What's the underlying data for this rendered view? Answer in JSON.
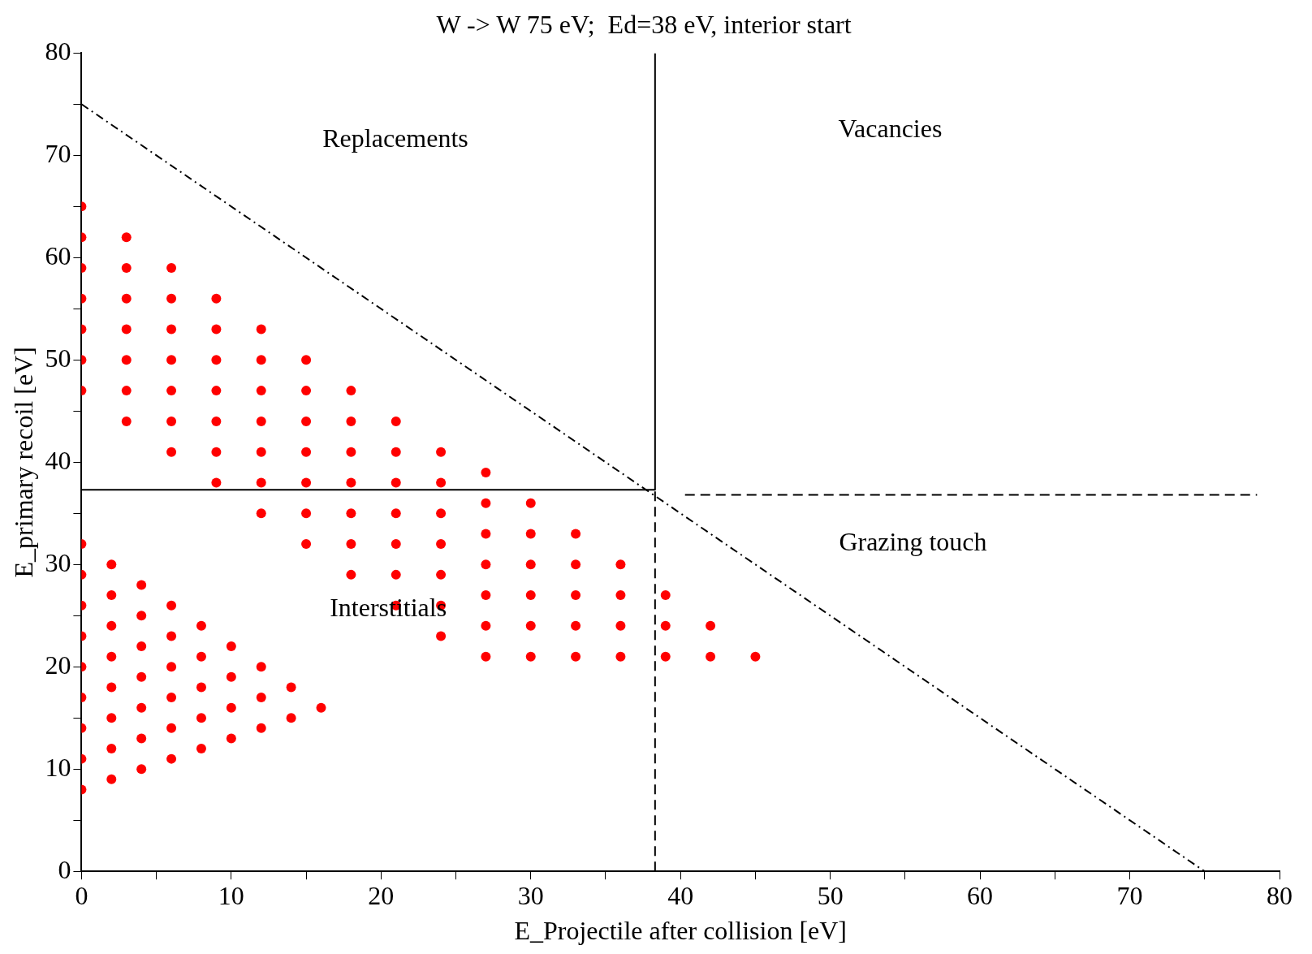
{
  "chart_data": {
    "type": "scatter",
    "title": "W -> W 75 eV;  Ed=38 eV, interior start",
    "xlabel": "E_Projectile after collision [eV]",
    "ylabel": "E_primary recoil [eV]",
    "xlim": [
      0,
      80
    ],
    "ylim": [
      0,
      80
    ],
    "xticks": [
      0,
      {
        "value": 5,
        "label": null
      },
      10,
      {
        "value": 15,
        "label": null
      },
      20,
      {
        "value": 25,
        "label": null
      },
      30,
      {
        "value": 35,
        "label": null
      },
      40,
      {
        "value": 45,
        "label": null
      },
      50,
      {
        "value": 55,
        "label": null
      },
      60,
      {
        "value": 65,
        "label": null
      },
      70,
      {
        "value": 75,
        "label": null
      },
      80
    ],
    "yticks": [
      0,
      {
        "value": 5,
        "label": null
      },
      10,
      {
        "value": 15,
        "label": null
      },
      20,
      {
        "value": 25,
        "label": null
      },
      30,
      {
        "value": 35,
        "label": null
      },
      40,
      {
        "value": 45,
        "label": null
      },
      50,
      {
        "value": 55,
        "label": null
      },
      60,
      {
        "value": 65,
        "label": null
      },
      70,
      {
        "value": 75,
        "label": null
      },
      80
    ],
    "grid": false,
    "legend": false,
    "series": [
      {
        "type": "scatter",
        "marker": "circle",
        "color": "#ff0000",
        "x": [
          0,
          0,
          0,
          0,
          0,
          0,
          0,
          3,
          3,
          3,
          3,
          3,
          3,
          3,
          6,
          6,
          6,
          6,
          6,
          6,
          6,
          9,
          9,
          9,
          9,
          9,
          9,
          9,
          12,
          12,
          12,
          12,
          12,
          12,
          12,
          15,
          15,
          15,
          15,
          15,
          15,
          15,
          18,
          18,
          18,
          18,
          18,
          18,
          18,
          21,
          21,
          21,
          21,
          21,
          21,
          21,
          24,
          24,
          24,
          24,
          24,
          24,
          24,
          27,
          27,
          27,
          27,
          27,
          27,
          27,
          30,
          30,
          30,
          30,
          30,
          30,
          33,
          33,
          33,
          33,
          33,
          36,
          36,
          36,
          36,
          39,
          39,
          39,
          42,
          42,
          45,
          0,
          0,
          0,
          0,
          0,
          0,
          0,
          0,
          0,
          2,
          2,
          2,
          2,
          2,
          2,
          2,
          2,
          4,
          4,
          4,
          4,
          4,
          4,
          4,
          6,
          6,
          6,
          6,
          6,
          6,
          8,
          8,
          8,
          8,
          8,
          10,
          10,
          10,
          10,
          12,
          12,
          12,
          14,
          14,
          16
        ],
        "values": [
          47,
          50,
          53,
          56,
          59,
          62,
          65,
          44,
          47,
          50,
          53,
          56,
          59,
          62,
          41,
          44,
          47,
          50,
          53,
          56,
          59,
          38,
          41,
          44,
          47,
          50,
          53,
          56,
          35,
          38,
          41,
          44,
          47,
          50,
          53,
          32,
          35,
          38,
          41,
          44,
          47,
          50,
          29,
          32,
          35,
          38,
          41,
          44,
          47,
          26,
          29,
          32,
          35,
          38,
          41,
          44,
          23,
          26,
          29,
          32,
          35,
          38,
          41,
          21,
          24,
          27,
          30,
          33,
          36,
          39,
          21,
          24,
          27,
          30,
          33,
          36,
          21,
          24,
          27,
          30,
          33,
          21,
          24,
          27,
          30,
          21,
          24,
          27,
          21,
          24,
          21,
          8,
          11,
          14,
          17,
          20,
          23,
          26,
          29,
          32,
          9,
          12,
          15,
          18,
          21,
          24,
          27,
          30,
          10,
          13,
          16,
          19,
          22,
          25,
          28,
          11,
          14,
          17,
          20,
          23,
          26,
          12,
          15,
          18,
          21,
          24,
          13,
          16,
          19,
          22,
          14,
          17,
          20,
          15,
          18,
          16
        ]
      },
      {
        "type": "line",
        "color": "#000000",
        "line_style": "solid",
        "x": [
          0,
          38.3,
          38.3
        ],
        "values": [
          37.3,
          37.3,
          80
        ]
      },
      {
        "type": "line",
        "color": "#000000",
        "line_style": "dashed",
        "x": [
          38.3,
          38.3
        ],
        "values": [
          0,
          37.3
        ]
      },
      {
        "type": "line",
        "color": "#000000",
        "line_style": "dashed",
        "x": [
          40.3,
          78.5
        ],
        "values": [
          36.8,
          36.8
        ]
      },
      {
        "type": "line",
        "color": "#000000",
        "line_style": "dashdot",
        "x": [
          0,
          75
        ],
        "values": [
          75,
          0
        ]
      }
    ],
    "annotations": [
      "Replacements",
      "Vacancies",
      "Grazing touch",
      "Interstitials"
    ]
  }
}
